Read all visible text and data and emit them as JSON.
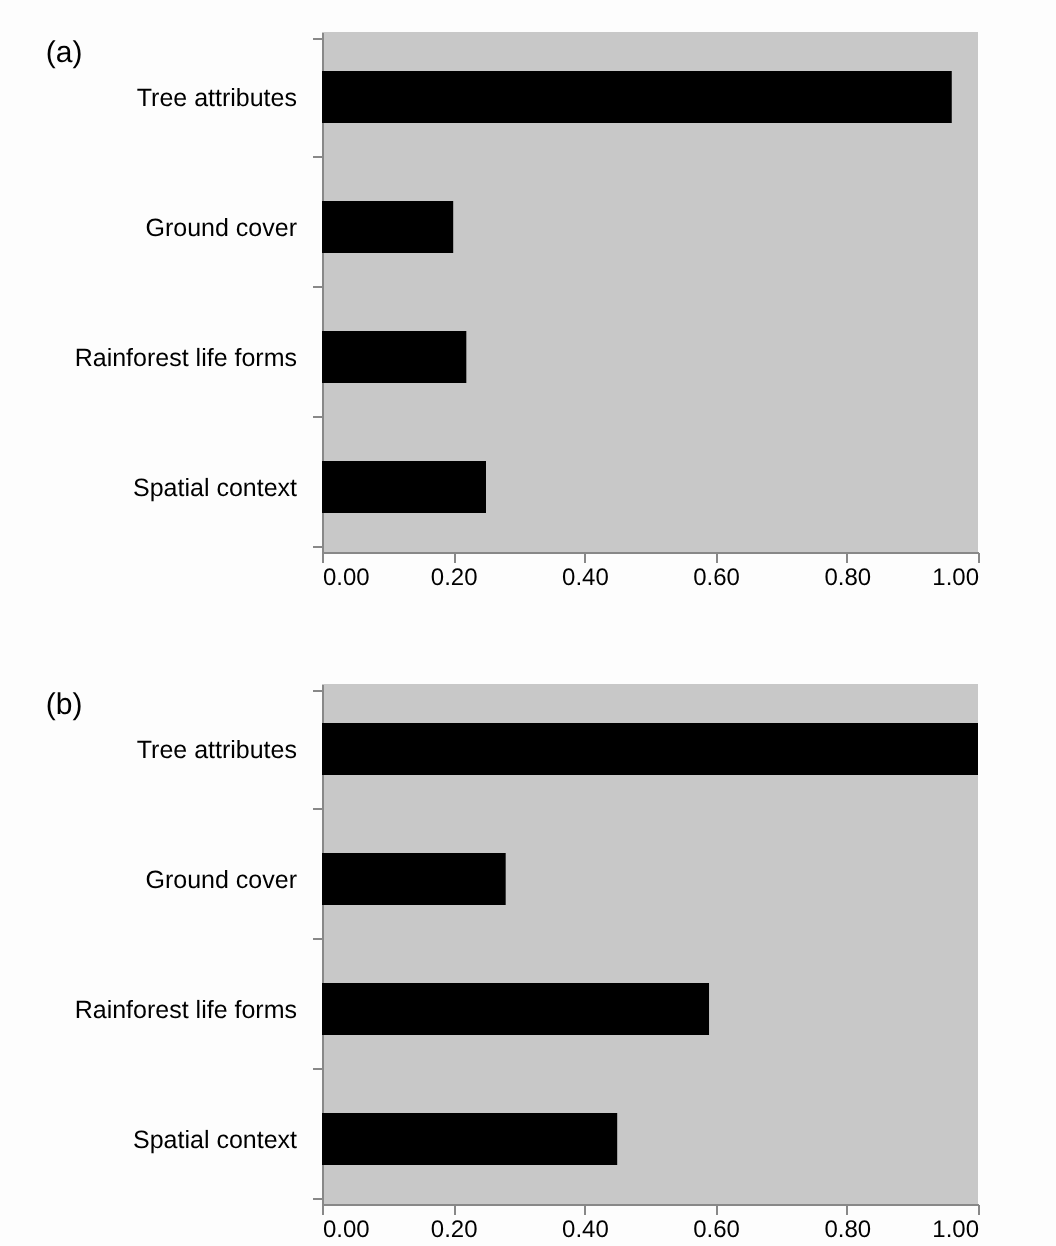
{
  "chart_data": [
    {
      "type": "bar",
      "orientation": "horizontal",
      "title": "(a)",
      "categories": [
        "Tree attributes",
        "Ground cover",
        "Rainforest life forms",
        "Spatial context"
      ],
      "values": [
        0.96,
        0.2,
        0.22,
        0.25
      ],
      "color": "#000000",
      "xlim": [
        0,
        1
      ],
      "xticks": [
        {
          "value": 0,
          "label": "0.00"
        },
        {
          "value": 0.2,
          "label": "0.20"
        },
        {
          "value": 0.4,
          "label": "0.40"
        },
        {
          "value": 0.6,
          "label": "0.60"
        },
        {
          "value": 0.8,
          "label": "0.80"
        },
        {
          "value": 1,
          "label": "1.00"
        }
      ],
      "grid": false
    },
    {
      "type": "bar",
      "orientation": "horizontal",
      "title": "(b)",
      "categories": [
        "Tree attributes",
        "Ground cover",
        "Rainforest life forms",
        "Spatial context"
      ],
      "values": [
        1.0,
        0.28,
        0.59,
        0.45
      ],
      "color": "#000000",
      "xlim": [
        0,
        1
      ],
      "xticks": [
        {
          "value": 0,
          "label": "0.00"
        },
        {
          "value": 0.2,
          "label": "0.20"
        },
        {
          "value": 0.4,
          "label": "0.40"
        },
        {
          "value": 0.6,
          "label": "0.60"
        },
        {
          "value": 0.8,
          "label": "0.80"
        },
        {
          "value": 1,
          "label": "1.00"
        }
      ],
      "grid": false
    }
  ]
}
